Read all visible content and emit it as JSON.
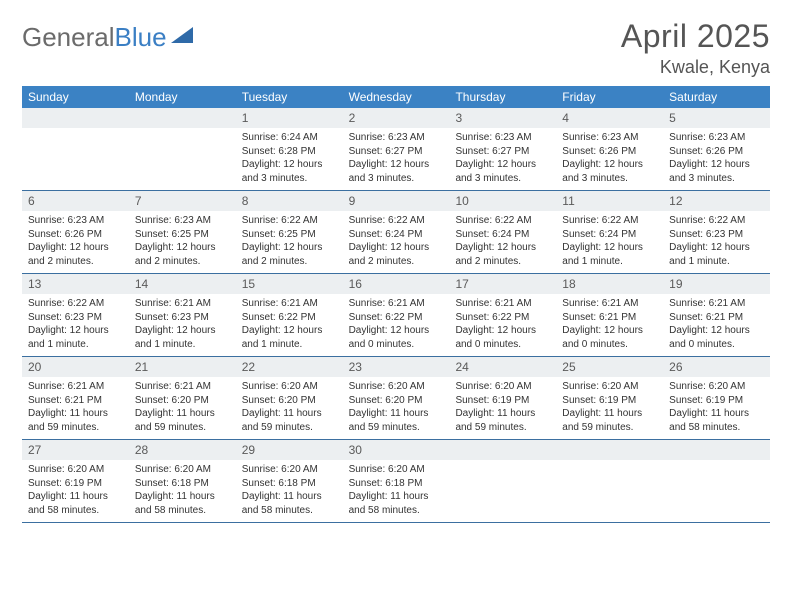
{
  "logo": {
    "text_part1": "General",
    "text_part2": "Blue"
  },
  "title": "April 2025",
  "location": "Kwale, Kenya",
  "colors": {
    "header_bg": "#3b82c4",
    "header_text": "#ffffff",
    "daynum_bg": "#eceff1",
    "row_border": "#3b6fa0",
    "logo_gray": "#6b6b6b",
    "logo_blue": "#3b7fc4",
    "triangle_fill": "#2f6aa8"
  },
  "weekdays": [
    "Sunday",
    "Monday",
    "Tuesday",
    "Wednesday",
    "Thursday",
    "Friday",
    "Saturday"
  ],
  "weeks": [
    [
      null,
      null,
      {
        "n": "1",
        "sr": "6:24 AM",
        "ss": "6:28 PM",
        "dl": "12 hours and 3 minutes."
      },
      {
        "n": "2",
        "sr": "6:23 AM",
        "ss": "6:27 PM",
        "dl": "12 hours and 3 minutes."
      },
      {
        "n": "3",
        "sr": "6:23 AM",
        "ss": "6:27 PM",
        "dl": "12 hours and 3 minutes."
      },
      {
        "n": "4",
        "sr": "6:23 AM",
        "ss": "6:26 PM",
        "dl": "12 hours and 3 minutes."
      },
      {
        "n": "5",
        "sr": "6:23 AM",
        "ss": "6:26 PM",
        "dl": "12 hours and 3 minutes."
      }
    ],
    [
      {
        "n": "6",
        "sr": "6:23 AM",
        "ss": "6:26 PM",
        "dl": "12 hours and 2 minutes."
      },
      {
        "n": "7",
        "sr": "6:23 AM",
        "ss": "6:25 PM",
        "dl": "12 hours and 2 minutes."
      },
      {
        "n": "8",
        "sr": "6:22 AM",
        "ss": "6:25 PM",
        "dl": "12 hours and 2 minutes."
      },
      {
        "n": "9",
        "sr": "6:22 AM",
        "ss": "6:24 PM",
        "dl": "12 hours and 2 minutes."
      },
      {
        "n": "10",
        "sr": "6:22 AM",
        "ss": "6:24 PM",
        "dl": "12 hours and 2 minutes."
      },
      {
        "n": "11",
        "sr": "6:22 AM",
        "ss": "6:24 PM",
        "dl": "12 hours and 1 minute."
      },
      {
        "n": "12",
        "sr": "6:22 AM",
        "ss": "6:23 PM",
        "dl": "12 hours and 1 minute."
      }
    ],
    [
      {
        "n": "13",
        "sr": "6:22 AM",
        "ss": "6:23 PM",
        "dl": "12 hours and 1 minute."
      },
      {
        "n": "14",
        "sr": "6:21 AM",
        "ss": "6:23 PM",
        "dl": "12 hours and 1 minute."
      },
      {
        "n": "15",
        "sr": "6:21 AM",
        "ss": "6:22 PM",
        "dl": "12 hours and 1 minute."
      },
      {
        "n": "16",
        "sr": "6:21 AM",
        "ss": "6:22 PM",
        "dl": "12 hours and 0 minutes."
      },
      {
        "n": "17",
        "sr": "6:21 AM",
        "ss": "6:22 PM",
        "dl": "12 hours and 0 minutes."
      },
      {
        "n": "18",
        "sr": "6:21 AM",
        "ss": "6:21 PM",
        "dl": "12 hours and 0 minutes."
      },
      {
        "n": "19",
        "sr": "6:21 AM",
        "ss": "6:21 PM",
        "dl": "12 hours and 0 minutes."
      }
    ],
    [
      {
        "n": "20",
        "sr": "6:21 AM",
        "ss": "6:21 PM",
        "dl": "11 hours and 59 minutes."
      },
      {
        "n": "21",
        "sr": "6:21 AM",
        "ss": "6:20 PM",
        "dl": "11 hours and 59 minutes."
      },
      {
        "n": "22",
        "sr": "6:20 AM",
        "ss": "6:20 PM",
        "dl": "11 hours and 59 minutes."
      },
      {
        "n": "23",
        "sr": "6:20 AM",
        "ss": "6:20 PM",
        "dl": "11 hours and 59 minutes."
      },
      {
        "n": "24",
        "sr": "6:20 AM",
        "ss": "6:19 PM",
        "dl": "11 hours and 59 minutes."
      },
      {
        "n": "25",
        "sr": "6:20 AM",
        "ss": "6:19 PM",
        "dl": "11 hours and 59 minutes."
      },
      {
        "n": "26",
        "sr": "6:20 AM",
        "ss": "6:19 PM",
        "dl": "11 hours and 58 minutes."
      }
    ],
    [
      {
        "n": "27",
        "sr": "6:20 AM",
        "ss": "6:19 PM",
        "dl": "11 hours and 58 minutes."
      },
      {
        "n": "28",
        "sr": "6:20 AM",
        "ss": "6:18 PM",
        "dl": "11 hours and 58 minutes."
      },
      {
        "n": "29",
        "sr": "6:20 AM",
        "ss": "6:18 PM",
        "dl": "11 hours and 58 minutes."
      },
      {
        "n": "30",
        "sr": "6:20 AM",
        "ss": "6:18 PM",
        "dl": "11 hours and 58 minutes."
      },
      null,
      null,
      null
    ]
  ],
  "labels": {
    "sunrise": "Sunrise:",
    "sunset": "Sunset:",
    "daylight": "Daylight:"
  }
}
